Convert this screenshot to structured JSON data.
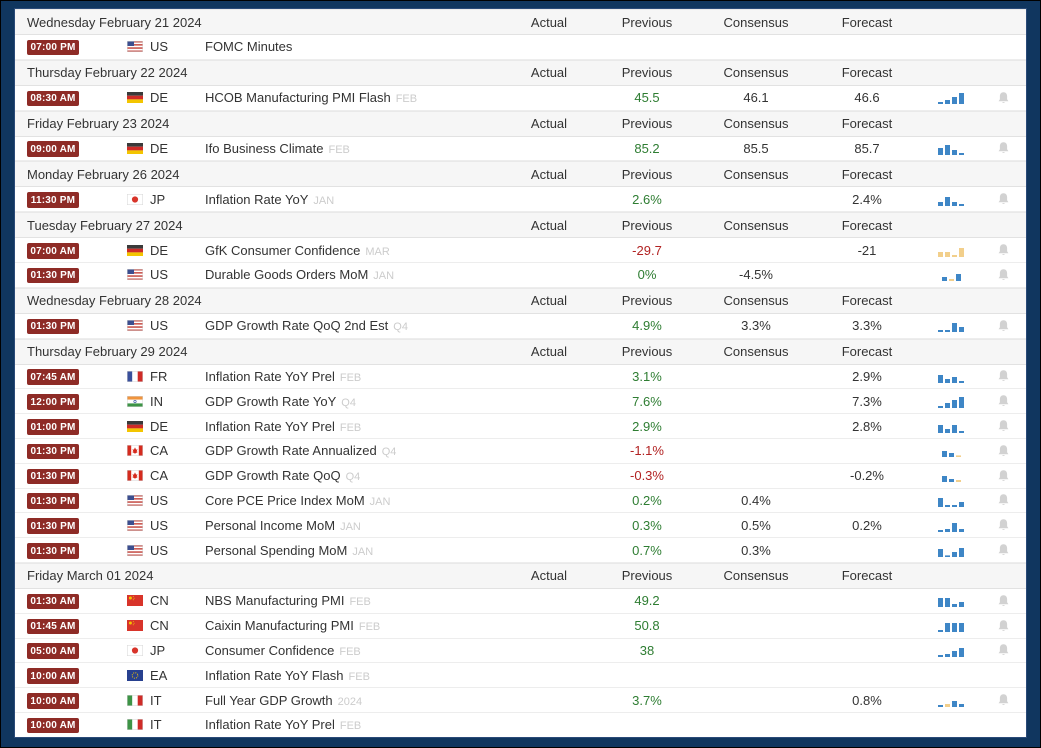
{
  "columns": {
    "actual": "Actual",
    "previous": "Previous",
    "consensus": "Consensus",
    "forecast": "Forecast"
  },
  "colors": {
    "badge_bg": "#8e2b26",
    "green": "#2e7d32",
    "red": "#b22222",
    "value_plain": "#333333",
    "chart_blue": "#3e86c6",
    "chart_yellow": "#f2cf8b",
    "bell": "#d2d2d2",
    "frame_navy": "#10365f",
    "header_bg": "#f6f6f6"
  },
  "groups": [
    {
      "date": "Wednesday February 21 2024",
      "events": [
        {
          "time": "07:00 PM",
          "country": "US",
          "event": "FOMC Minutes",
          "period": "",
          "previous": "",
          "prev_color": "",
          "consensus": "",
          "forecast": "",
          "chart": null,
          "bell": false
        }
      ]
    },
    {
      "date": "Thursday February 22 2024",
      "events": [
        {
          "time": "08:30 AM",
          "country": "DE",
          "event": "HCOB Manufacturing PMI Flash",
          "period": "FEB",
          "previous": "45.5",
          "prev_color": "green",
          "consensus": "46.1",
          "forecast": "46.6",
          "chart": [
            {
              "h": 2,
              "c": "b"
            },
            {
              "h": 4,
              "c": "b"
            },
            {
              "h": 7,
              "c": "b"
            },
            {
              "h": 11,
              "c": "b"
            }
          ],
          "bell": true
        }
      ]
    },
    {
      "date": "Friday February 23 2024",
      "events": [
        {
          "time": "09:00 AM",
          "country": "DE",
          "event": "Ifo Business Climate",
          "period": "FEB",
          "previous": "85.2",
          "prev_color": "green",
          "consensus": "85.5",
          "forecast": "85.7",
          "chart": [
            {
              "h": 7,
              "c": "b"
            },
            {
              "h": 10,
              "c": "b"
            },
            {
              "h": 5,
              "c": "b"
            },
            {
              "h": 2,
              "c": "b"
            }
          ],
          "bell": true
        }
      ]
    },
    {
      "date": "Monday February 26 2024",
      "events": [
        {
          "time": "11:30 PM",
          "country": "JP",
          "event": "Inflation Rate YoY",
          "period": "JAN",
          "previous": "2.6%",
          "prev_color": "green",
          "consensus": "",
          "forecast": "2.4%",
          "chart": [
            {
              "h": 4,
              "c": "b"
            },
            {
              "h": 9,
              "c": "b"
            },
            {
              "h": 4,
              "c": "b"
            },
            {
              "h": 2,
              "c": "b"
            }
          ],
          "bell": true
        }
      ]
    },
    {
      "date": "Tuesday February 27 2024",
      "events": [
        {
          "time": "07:00 AM",
          "country": "DE",
          "event": "GfK Consumer Confidence",
          "period": "MAR",
          "previous": "-29.7",
          "prev_color": "red",
          "consensus": "",
          "forecast": "-21",
          "chart": [
            {
              "h": 5,
              "c": "y"
            },
            {
              "h": 5,
              "c": "y"
            },
            {
              "h": 2,
              "c": "y"
            },
            {
              "h": 9,
              "c": "y"
            }
          ],
          "bell": true
        },
        {
          "time": "01:30 PM",
          "country": "US",
          "event": "Durable Goods Orders MoM",
          "period": "JAN",
          "previous": "0%",
          "prev_color": "green",
          "consensus": "-4.5%",
          "forecast": "",
          "chart": [
            {
              "h": 4,
              "c": "b"
            },
            {
              "h": 2,
              "c": "y"
            },
            {
              "h": 7,
              "c": "b"
            }
          ],
          "bell": true
        }
      ]
    },
    {
      "date": "Wednesday February 28 2024",
      "events": [
        {
          "time": "01:30 PM",
          "country": "US",
          "event": "GDP Growth Rate QoQ 2nd Est",
          "period": "Q4",
          "previous": "4.9%",
          "prev_color": "green",
          "consensus": "3.3%",
          "forecast": "3.3%",
          "chart": [
            {
              "h": 2,
              "c": "b"
            },
            {
              "h": 2,
              "c": "b"
            },
            {
              "h": 9,
              "c": "b"
            },
            {
              "h": 5,
              "c": "b"
            }
          ],
          "bell": true
        }
      ]
    },
    {
      "date": "Thursday February 29 2024",
      "events": [
        {
          "time": "07:45 AM",
          "country": "FR",
          "event": "Inflation Rate YoY Prel",
          "period": "FEB",
          "previous": "3.1%",
          "prev_color": "green",
          "consensus": "",
          "forecast": "2.9%",
          "chart": [
            {
              "h": 8,
              "c": "b"
            },
            {
              "h": 4,
              "c": "b"
            },
            {
              "h": 6,
              "c": "b"
            },
            {
              "h": 2,
              "c": "b"
            }
          ],
          "bell": true
        },
        {
          "time": "12:00 PM",
          "country": "IN",
          "event": "GDP Growth Rate YoY",
          "period": "Q4",
          "previous": "7.6%",
          "prev_color": "green",
          "consensus": "",
          "forecast": "7.3%",
          "chart": [
            {
              "h": 2,
              "c": "b"
            },
            {
              "h": 5,
              "c": "b"
            },
            {
              "h": 8,
              "c": "b"
            },
            {
              "h": 11,
              "c": "b"
            }
          ],
          "bell": true
        },
        {
          "time": "01:00 PM",
          "country": "DE",
          "event": "Inflation Rate YoY Prel",
          "period": "FEB",
          "previous": "2.9%",
          "prev_color": "green",
          "consensus": "",
          "forecast": "2.8%",
          "chart": [
            {
              "h": 8,
              "c": "b"
            },
            {
              "h": 4,
              "c": "b"
            },
            {
              "h": 8,
              "c": "b"
            },
            {
              "h": 2,
              "c": "b"
            }
          ],
          "bell": true
        },
        {
          "time": "01:30 PM",
          "country": "CA",
          "event": "GDP Growth Rate Annualized",
          "period": "Q4",
          "previous": "-1.1%",
          "prev_color": "red",
          "consensus": "",
          "forecast": "",
          "chart": [
            {
              "h": 6,
              "c": "b"
            },
            {
              "h": 4,
              "c": "b"
            },
            {
              "h": 1,
              "c": "y"
            }
          ],
          "bell": true
        },
        {
          "time": "01:30 PM",
          "country": "CA",
          "event": "GDP Growth Rate QoQ",
          "period": "Q4",
          "previous": "-0.3%",
          "prev_color": "red",
          "consensus": "",
          "forecast": "-0.2%",
          "chart": [
            {
              "h": 6,
              "c": "b"
            },
            {
              "h": 3,
              "c": "b"
            },
            {
              "h": 2,
              "c": "y"
            }
          ],
          "bell": true
        },
        {
          "time": "01:30 PM",
          "country": "US",
          "event": "Core PCE Price Index MoM",
          "period": "JAN",
          "previous": "0.2%",
          "prev_color": "green",
          "consensus": "0.4%",
          "forecast": "",
          "chart": [
            {
              "h": 9,
              "c": "b"
            },
            {
              "h": 2,
              "c": "b"
            },
            {
              "h": 2,
              "c": "b"
            },
            {
              "h": 5,
              "c": "b"
            }
          ],
          "bell": true
        },
        {
          "time": "01:30 PM",
          "country": "US",
          "event": "Personal Income MoM",
          "period": "JAN",
          "previous": "0.3%",
          "prev_color": "green",
          "consensus": "0.5%",
          "forecast": "0.2%",
          "chart": [
            {
              "h": 2,
              "c": "b"
            },
            {
              "h": 3,
              "c": "b"
            },
            {
              "h": 9,
              "c": "b"
            },
            {
              "h": 3,
              "c": "b"
            }
          ],
          "bell": true
        },
        {
          "time": "01:30 PM",
          "country": "US",
          "event": "Personal Spending MoM",
          "period": "JAN",
          "previous": "0.7%",
          "prev_color": "green",
          "consensus": "0.3%",
          "forecast": "",
          "chart": [
            {
              "h": 8,
              "c": "b"
            },
            {
              "h": 1,
              "c": "b"
            },
            {
              "h": 5,
              "c": "b"
            },
            {
              "h": 9,
              "c": "b"
            }
          ],
          "bell": true
        }
      ]
    },
    {
      "date": "Friday March 01 2024",
      "events": [
        {
          "time": "01:30 AM",
          "country": "CN",
          "event": "NBS Manufacturing PMI",
          "period": "FEB",
          "previous": "49.2",
          "prev_color": "green",
          "consensus": "",
          "forecast": "",
          "chart": [
            {
              "h": 9,
              "c": "b"
            },
            {
              "h": 9,
              "c": "b"
            },
            {
              "h": 3,
              "c": "b"
            },
            {
              "h": 5,
              "c": "b"
            }
          ],
          "bell": true
        },
        {
          "time": "01:45 AM",
          "country": "CN",
          "event": "Caixin Manufacturing PMI",
          "period": "FEB",
          "previous": "50.8",
          "prev_color": "green",
          "consensus": "",
          "forecast": "",
          "chart": [
            {
              "h": 2,
              "c": "b"
            },
            {
              "h": 9,
              "c": "b"
            },
            {
              "h": 9,
              "c": "b"
            },
            {
              "h": 9,
              "c": "b"
            }
          ],
          "bell": true
        },
        {
          "time": "05:00 AM",
          "country": "JP",
          "event": "Consumer Confidence",
          "period": "FEB",
          "previous": "38",
          "prev_color": "green",
          "consensus": "",
          "forecast": "",
          "chart": [
            {
              "h": 2,
              "c": "b"
            },
            {
              "h": 3,
              "c": "b"
            },
            {
              "h": 6,
              "c": "b"
            },
            {
              "h": 9,
              "c": "b"
            }
          ],
          "bell": true
        },
        {
          "time": "10:00 AM",
          "country": "EA",
          "event": "Inflation Rate YoY Flash",
          "period": "FEB",
          "previous": "",
          "prev_color": "",
          "consensus": "",
          "forecast": "",
          "chart": null,
          "bell": false
        },
        {
          "time": "10:00 AM",
          "country": "IT",
          "event": "Full Year GDP Growth",
          "period": "2024",
          "previous": "3.7%",
          "prev_color": "green",
          "consensus": "",
          "forecast": "0.8%",
          "chart": [
            {
              "h": 2,
              "c": "b"
            },
            {
              "h": 3,
              "c": "y"
            },
            {
              "h": 6,
              "c": "b"
            },
            {
              "h": 3,
              "c": "b"
            }
          ],
          "bell": true
        },
        {
          "time": "10:00 AM",
          "country": "IT",
          "event": "Inflation Rate YoY Prel",
          "period": "FEB",
          "previous": "",
          "prev_color": "",
          "consensus": "",
          "forecast": "",
          "chart": null,
          "bell": false
        }
      ]
    }
  ]
}
